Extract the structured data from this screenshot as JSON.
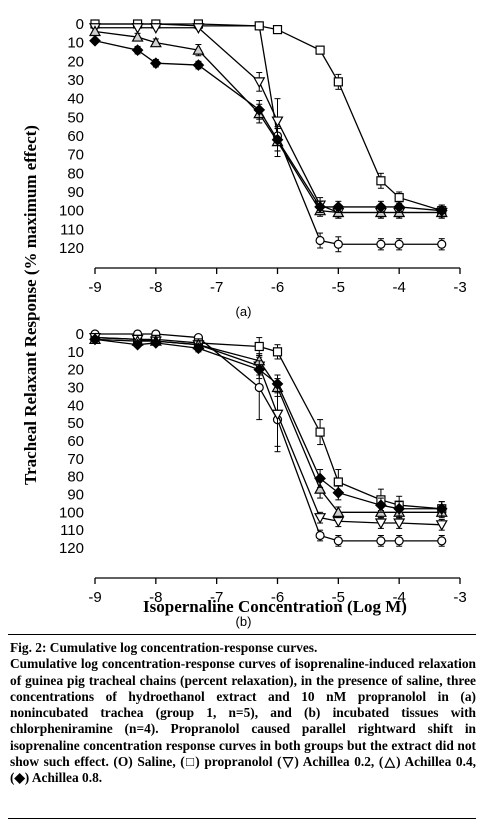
{
  "figure": {
    "y_axis_title": "Tracheal Relaxant Response (% maximum effect)",
    "x_axis_title": "Isopernaline Concentration (Log M)"
  },
  "chart_data": [
    {
      "type": "line",
      "panel_label": "(a)",
      "xlim": [
        -9,
        -3
      ],
      "ylim": [
        0,
        125
      ],
      "y_inverted": true,
      "x_ticks": [
        "-9",
        "-8",
        "-7",
        "-6",
        "-5",
        "-4",
        "-3"
      ],
      "y_ticks": [
        "0",
        "10",
        "20",
        "30",
        "40",
        "50",
        "60",
        "70",
        "80",
        "90",
        "100",
        "110",
        "120"
      ],
      "series": [
        {
          "name": "Saline",
          "marker": "circle",
          "x": [
            -9,
            -8.3,
            -8,
            -7.3,
            -6.3,
            -6,
            -5.3,
            -5,
            -4.3,
            -4,
            -3.3
          ],
          "y": [
            0,
            0,
            0,
            1,
            1,
            60,
            116,
            118,
            118,
            118,
            118
          ],
          "err": [
            0,
            0,
            0,
            0,
            0,
            8,
            4,
            4,
            3,
            3,
            3
          ]
        },
        {
          "name": "propranolol",
          "marker": "square",
          "x": [
            -9,
            -8.3,
            -8,
            -7.3,
            -6.3,
            -6,
            -5.3,
            -5,
            -4.3,
            -4,
            -3.3
          ],
          "y": [
            0,
            0,
            0,
            0,
            1,
            3,
            14,
            31,
            84,
            93,
            100
          ],
          "err": [
            0,
            0,
            0,
            0,
            0,
            0,
            2,
            4,
            4,
            3,
            3
          ]
        },
        {
          "name": "Achillea 0.2",
          "marker": "triangle-down",
          "x": [
            -9,
            -8.3,
            -8,
            -7.3,
            -6.3,
            -6,
            -5.3,
            -5,
            -4.3,
            -4,
            -3.3
          ],
          "y": [
            2,
            2,
            2,
            2,
            31,
            52,
            97,
            101,
            101,
            101,
            101
          ],
          "err": [
            0,
            0,
            0,
            0,
            5,
            12,
            4,
            3,
            3,
            3,
            3
          ]
        },
        {
          "name": "Achillea 0.4",
          "marker": "triangle-up",
          "x": [
            -9,
            -8.3,
            -8,
            -7.3,
            -6.3,
            -6,
            -5.3,
            -5,
            -4.3,
            -4,
            -3.3
          ],
          "y": [
            4,
            7,
            10,
            14,
            48,
            63,
            100,
            101,
            101,
            101,
            101
          ],
          "err": [
            0,
            2,
            2,
            3,
            5,
            8,
            3,
            3,
            3,
            3,
            3
          ]
        },
        {
          "name": "Achillea 0.8",
          "marker": "diamond",
          "x": [
            -9,
            -8.3,
            -8,
            -7.3,
            -6.3,
            -6,
            -5.3,
            -5,
            -4.3,
            -4,
            -3.3
          ],
          "y": [
            9,
            14,
            21,
            22,
            46,
            62,
            98,
            98,
            98,
            98,
            100
          ],
          "err": [
            0,
            2,
            2,
            2,
            5,
            6,
            3,
            3,
            3,
            3,
            3
          ]
        }
      ]
    },
    {
      "type": "line",
      "panel_label": "(b)",
      "xlim": [
        -9,
        -3
      ],
      "ylim": [
        0,
        125
      ],
      "y_inverted": true,
      "x_ticks": [
        "-9",
        "-8",
        "-7",
        "-6",
        "-5",
        "-4",
        "-3"
      ],
      "y_ticks": [
        "0",
        "10",
        "20",
        "30",
        "40",
        "50",
        "60",
        "70",
        "80",
        "90",
        "100",
        "110",
        "120"
      ],
      "series": [
        {
          "name": "Saline",
          "marker": "circle",
          "x": [
            -9,
            -8.3,
            -8,
            -7.3,
            -6.3,
            -6,
            -5.3,
            -5,
            -4.3,
            -4,
            -3.3
          ],
          "y": [
            0,
            0,
            0,
            2,
            30,
            48,
            113,
            116,
            116,
            116,
            116
          ],
          "err": [
            0,
            0,
            0,
            0,
            18,
            18,
            3,
            3,
            3,
            3,
            3
          ]
        },
        {
          "name": "propranolol",
          "marker": "square",
          "x": [
            -9,
            -8.3,
            -8,
            -7.3,
            -6.3,
            -6,
            -5.3,
            -5,
            -4.3,
            -4,
            -3.3
          ],
          "y": [
            2,
            3,
            3,
            5,
            7,
            10,
            55,
            83,
            93,
            96,
            98
          ],
          "err": [
            0,
            0,
            0,
            2,
            5,
            4,
            7,
            7,
            6,
            5,
            4
          ]
        },
        {
          "name": "Achillea 0.2",
          "marker": "triangle-down",
          "x": [
            -9,
            -8.3,
            -8,
            -7.3,
            -6.3,
            -6,
            -5.3,
            -5,
            -4.3,
            -4,
            -3.3
          ],
          "y": [
            2,
            3,
            4,
            6,
            18,
            45,
            103,
            105,
            106,
            106,
            107
          ],
          "err": [
            0,
            0,
            0,
            2,
            5,
            18,
            3,
            3,
            3,
            3,
            3
          ]
        },
        {
          "name": "Achillea 0.4",
          "marker": "triangle-up",
          "x": [
            -9,
            -8.3,
            -8,
            -7.3,
            -6.3,
            -6,
            -5.3,
            -5,
            -4.3,
            -4,
            -3.3
          ],
          "y": [
            3,
            4,
            4,
            6,
            15,
            30,
            87,
            100,
            100,
            100,
            100
          ],
          "err": [
            0,
            0,
            0,
            2,
            4,
            5,
            5,
            3,
            3,
            3,
            3
          ]
        },
        {
          "name": "Achillea 0.8",
          "marker": "diamond",
          "x": [
            -9,
            -8.3,
            -8,
            -7.3,
            -6.3,
            -6,
            -5.3,
            -5,
            -4.3,
            -4,
            -3.3
          ],
          "y": [
            3,
            6,
            5,
            8,
            20,
            28,
            81,
            89,
            96,
            98,
            98
          ],
          "err": [
            0,
            0,
            0,
            2,
            5,
            5,
            5,
            4,
            4,
            4,
            4
          ]
        }
      ]
    }
  ],
  "caption": {
    "title": "Fig. 2: Cumulative log concentration-response curves.",
    "body": "Cumulative log concentration-response curves of isoprenaline-induced relaxation of guinea pig tracheal chains (percent relaxation), in the presence of saline, three concentrations of hydroethanol extract and 10 nM propranolol in (a) nonincubated trachea (group 1, n=5), and (b) incubated tissues with chlorpheniramine (n=4). Propranolol caused parallel rightward shift in isoprenaline concentration response curves in both groups but the extract did not show such effect. (O) Saline, (□) propranolol (▽) Achillea 0.2, (△) Achillea 0.4, (◆) Achillea 0.8."
  }
}
